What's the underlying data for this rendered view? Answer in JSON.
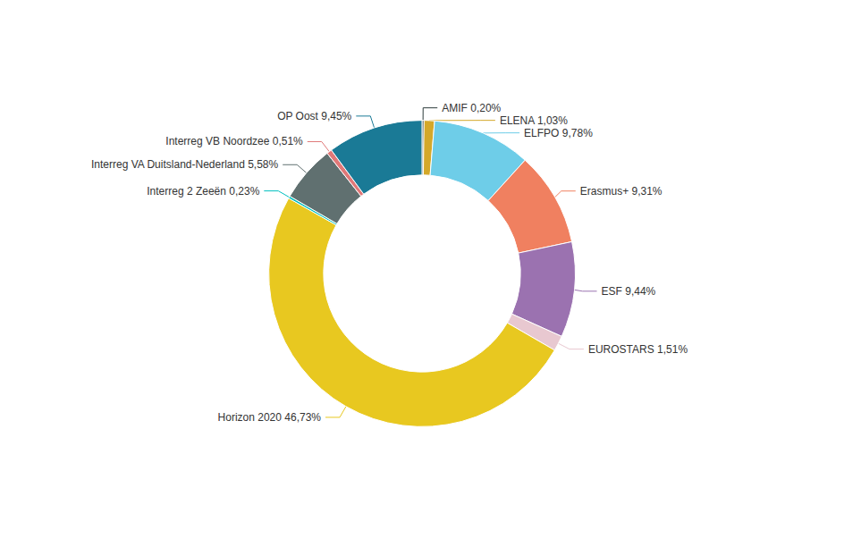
{
  "chart_data": {
    "type": "pie",
    "categories": [
      "AMIF 0,20%",
      "ELENA 1,03%",
      "ELFPO 9,78%",
      "Erasmus+ 9,31%",
      "ESF 9,44%",
      "EUROSTARS 1,51%",
      "Horizon 2020 46,73%",
      "Interreg 2 Zeeën 0,23%",
      "Interreg VA Duitsland-Nederland 5,58%",
      "Interreg VB Noordzee 0,51%",
      "OP Oost 9,45%"
    ],
    "values": [
      0.2,
      1.03,
      9.78,
      9.31,
      9.44,
      1.51,
      46.73,
      0.23,
      5.58,
      0.51,
      9.45
    ],
    "colors": [
      "#2e3d3d",
      "#d4a82a",
      "#6ecde8",
      "#f08060",
      "#9b72b0",
      "#e8c8d0",
      "#e8c820",
      "#00bfbf",
      "#607070",
      "#e07878",
      "#1a7a96"
    ]
  }
}
